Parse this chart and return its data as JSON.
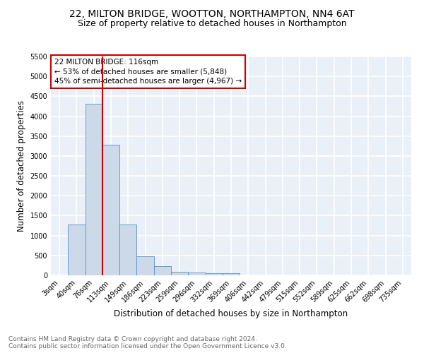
{
  "title1": "22, MILTON BRIDGE, WOOTTON, NORTHAMPTON, NN4 6AT",
  "title2": "Size of property relative to detached houses in Northampton",
  "xlabel": "Distribution of detached houses by size in Northampton",
  "ylabel": "Number of detached properties",
  "bar_labels": [
    "3sqm",
    "40sqm",
    "76sqm",
    "113sqm",
    "149sqm",
    "186sqm",
    "223sqm",
    "259sqm",
    "296sqm",
    "332sqm",
    "369sqm",
    "406sqm",
    "442sqm",
    "479sqm",
    "515sqm",
    "552sqm",
    "589sqm",
    "625sqm",
    "662sqm",
    "698sqm",
    "735sqm"
  ],
  "bar_values": [
    0,
    1270,
    4310,
    3290,
    1280,
    480,
    225,
    95,
    65,
    55,
    60,
    0,
    0,
    0,
    0,
    0,
    0,
    0,
    0,
    0,
    0
  ],
  "bar_color": "#ccd9e8",
  "bar_edge_color": "#5b8fc9",
  "vline_color": "#cc0000",
  "annotation_text": "22 MILTON BRIDGE: 116sqm\n← 53% of detached houses are smaller (5,848)\n45% of semi-detached houses are larger (4,967) →",
  "annotation_box_color": "#ffffff",
  "annotation_box_edge_color": "#cc0000",
  "ylim": [
    0,
    5500
  ],
  "yticks": [
    0,
    500,
    1000,
    1500,
    2000,
    2500,
    3000,
    3500,
    4000,
    4500,
    5000,
    5500
  ],
  "bg_color": "#eaf0f8",
  "grid_color": "#ffffff",
  "footer_text": "Contains HM Land Registry data © Crown copyright and database right 2024.\nContains public sector information licensed under the Open Government Licence v3.0.",
  "title_fontsize": 10,
  "subtitle_fontsize": 9,
  "xlabel_fontsize": 8.5,
  "ylabel_fontsize": 8.5,
  "tick_fontsize": 7,
  "footer_fontsize": 6.5,
  "annotation_fontsize": 7.5
}
